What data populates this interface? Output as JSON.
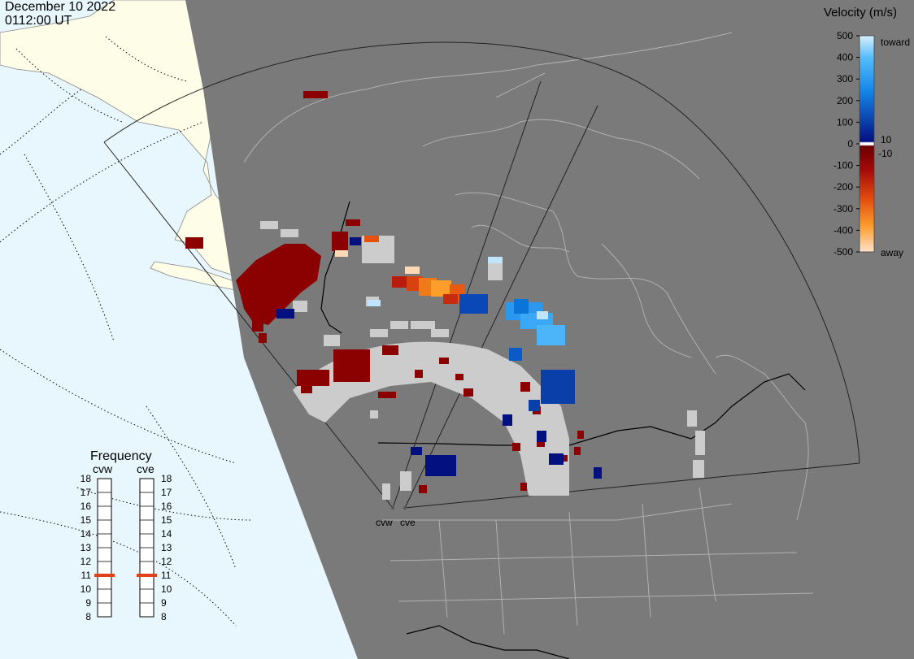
{
  "header": {
    "date": "December 10 2022",
    "time": "0112:00 UT"
  },
  "colorbar": {
    "title": "Velocity (m/s)",
    "ticks": [
      "500",
      "400",
      "300",
      "200",
      "100",
      "0",
      "-100",
      "-200",
      "-300",
      "-400",
      "-500"
    ],
    "small_pos": "10",
    "small_neg": "-10",
    "toward_label": "toward",
    "away_label": "away"
  },
  "frequency": {
    "title": "Frequency",
    "radars": [
      "cvw",
      "cve"
    ],
    "ticks": [
      "18",
      "17",
      "16",
      "15",
      "14",
      "13",
      "12",
      "11",
      "10",
      "9",
      "8"
    ],
    "current_mhz": [
      11,
      11
    ],
    "marker_color": "#e0401a"
  },
  "radars": {
    "west": "cvw",
    "east": "cve"
  },
  "colors": {
    "ocean": "#e8f6fe",
    "night": "#7a7a7a",
    "day_land": "#fdfde8",
    "ground_scatter": "#cccccc",
    "toward_strong": "#bfe4fb",
    "away_strong": "#fdd9b5"
  }
}
